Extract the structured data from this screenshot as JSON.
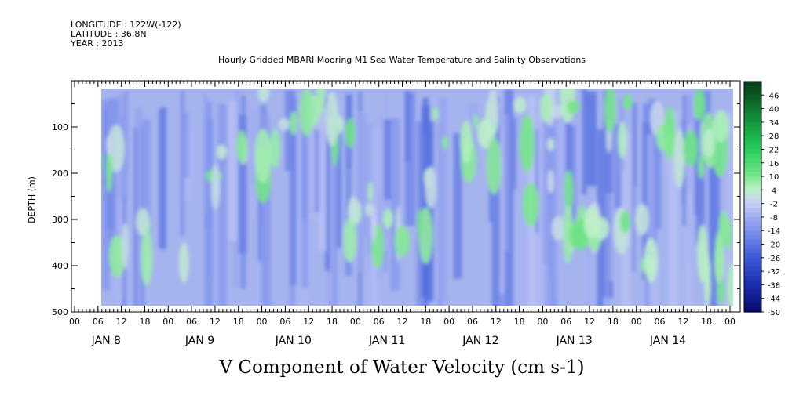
{
  "header": {
    "longitude": "LONGITUDE : 122W(-122)",
    "latitude": "LATITUDE : 36.8N",
    "year": "YEAR : 2013"
  },
  "chart_data": {
    "type": "heatmap",
    "title": "Hourly Gridded MBARI Mooring M1 Sea Water Temperature and Salinity Observations",
    "xlabel": "V Component of Water Velocity (cm s-1)",
    "ylabel": "DEPTH (m)",
    "ylim": [
      500,
      0
    ],
    "y_ticks": [
      100,
      200,
      300,
      400,
      500
    ],
    "x_hour_ticks": [
      "00",
      "06",
      "12",
      "18",
      "00",
      "06",
      "12",
      "18",
      "00",
      "06",
      "12",
      "18",
      "00",
      "06",
      "12",
      "18",
      "00",
      "06",
      "12",
      "18",
      "00",
      "06",
      "12",
      "18",
      "00",
      "06",
      "12",
      "18",
      "00"
    ],
    "x_day_labels": [
      "JAN  8",
      "JAN  9",
      "JAN 10",
      "JAN 11",
      "JAN 12",
      "JAN 13",
      "JAN 14"
    ],
    "data_extent": {
      "depth_top_m": 20,
      "depth_bottom_m": 490
    },
    "colorbar": {
      "labels": [
        "46",
        "40",
        "34",
        "28",
        "22",
        "16",
        "10",
        "4",
        "-2",
        "-8",
        "-14",
        "-20",
        "-26",
        "-32",
        "-38",
        "-44",
        "-50"
      ],
      "range": [
        -50,
        52
      ]
    },
    "series": [
      {
        "name": "V velocity",
        "description_hint": "mostly light blue (-5 to -20 cm/s) with scattered green bands (0 to 15 cm/s)"
      }
    ]
  }
}
